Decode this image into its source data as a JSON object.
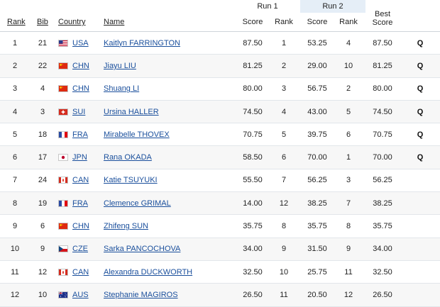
{
  "header": {
    "run1": "Run 1",
    "run2": "Run 2",
    "rank": "Rank",
    "bib": "Bib",
    "country": "Country",
    "name": "Name",
    "score": "Score",
    "run_rank": "Rank",
    "best_line1": "Best",
    "best_line2": "Score"
  },
  "colors": {
    "link": "#1a4f9c",
    "run2_shade": "#e5eef7"
  },
  "rows": [
    {
      "rank": "1",
      "bib": "21",
      "flag": "usa-flag-icon",
      "country": "USA",
      "name": "Kaitlyn FARRINGTON",
      "r1_score": "87.50",
      "r1_rank": "1",
      "r2_score": "53.25",
      "r2_rank": "4",
      "best": "87.50",
      "q": "Q"
    },
    {
      "rank": "2",
      "bib": "22",
      "flag": "china-flag-icon",
      "country": "CHN",
      "name": "Jiayu LIU",
      "r1_score": "81.25",
      "r1_rank": "2",
      "r2_score": "29.00",
      "r2_rank": "10",
      "best": "81.25",
      "q": "Q"
    },
    {
      "rank": "3",
      "bib": "4",
      "flag": "china-flag-icon",
      "country": "CHN",
      "name": "Shuang LI",
      "r1_score": "80.00",
      "r1_rank": "3",
      "r2_score": "56.75",
      "r2_rank": "2",
      "best": "80.00",
      "q": "Q"
    },
    {
      "rank": "4",
      "bib": "3",
      "flag": "switzerland-flag-icon",
      "country": "SUI",
      "name": "Ursina HALLER",
      "r1_score": "74.50",
      "r1_rank": "4",
      "r2_score": "43.00",
      "r2_rank": "5",
      "best": "74.50",
      "q": "Q"
    },
    {
      "rank": "5",
      "bib": "18",
      "flag": "france-flag-icon",
      "country": "FRA",
      "name": "Mirabelle THOVEX",
      "r1_score": "70.75",
      "r1_rank": "5",
      "r2_score": "39.75",
      "r2_rank": "6",
      "best": "70.75",
      "q": "Q"
    },
    {
      "rank": "6",
      "bib": "17",
      "flag": "japan-flag-icon",
      "country": "JPN",
      "name": "Rana OKADA",
      "r1_score": "58.50",
      "r1_rank": "6",
      "r2_score": "70.00",
      "r2_rank": "1",
      "best": "70.00",
      "q": "Q"
    },
    {
      "rank": "7",
      "bib": "24",
      "flag": "canada-flag-icon",
      "country": "CAN",
      "name": "Katie TSUYUKI",
      "r1_score": "55.50",
      "r1_rank": "7",
      "r2_score": "56.25",
      "r2_rank": "3",
      "best": "56.25",
      "q": ""
    },
    {
      "rank": "8",
      "bib": "19",
      "flag": "france-flag-icon",
      "country": "FRA",
      "name": "Clemence GRIMAL",
      "r1_score": "14.00",
      "r1_rank": "12",
      "r2_score": "38.25",
      "r2_rank": "7",
      "best": "38.25",
      "q": ""
    },
    {
      "rank": "9",
      "bib": "6",
      "flag": "china-flag-icon",
      "country": "CHN",
      "name": "Zhifeng SUN",
      "r1_score": "35.75",
      "r1_rank": "8",
      "r2_score": "35.75",
      "r2_rank": "8",
      "best": "35.75",
      "q": ""
    },
    {
      "rank": "10",
      "bib": "9",
      "flag": "czech-flag-icon",
      "country": "CZE",
      "name": "Sarka PANCOCHOVA",
      "r1_score": "34.00",
      "r1_rank": "9",
      "r2_score": "31.50",
      "r2_rank": "9",
      "best": "34.00",
      "q": ""
    },
    {
      "rank": "11",
      "bib": "12",
      "flag": "canada-flag-icon",
      "country": "CAN",
      "name": "Alexandra DUCKWORTH",
      "r1_score": "32.50",
      "r1_rank": "10",
      "r2_score": "25.75",
      "r2_rank": "11",
      "best": "32.50",
      "q": ""
    },
    {
      "rank": "12",
      "bib": "10",
      "flag": "australia-flag-icon",
      "country": "AUS",
      "name": "Stephanie MAGIROS",
      "r1_score": "26.50",
      "r1_rank": "11",
      "r2_score": "20.50",
      "r2_rank": "12",
      "best": "26.50",
      "q": ""
    }
  ]
}
